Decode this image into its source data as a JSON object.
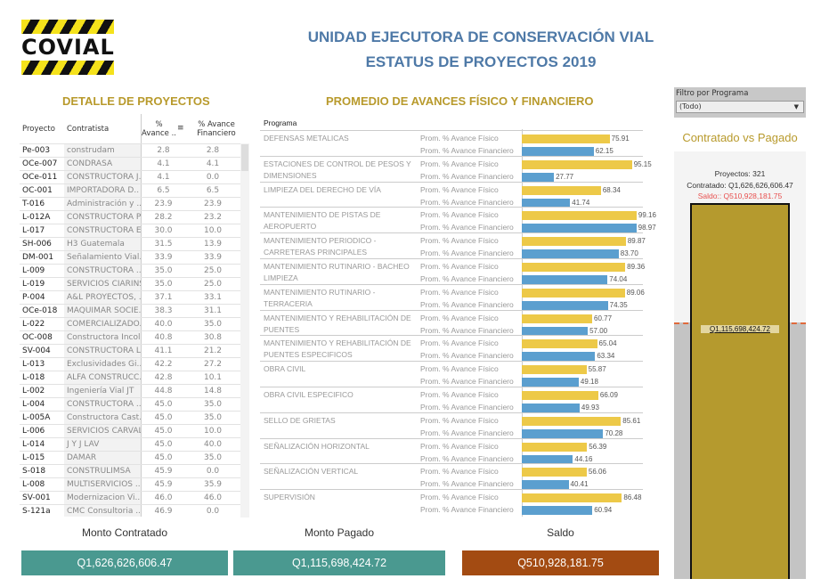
{
  "header": {
    "logo_text": "COVIAL",
    "title_line1": "UNIDAD EJECUTORA DE CONSERVACIÓN VIAL",
    "title_line2": "ESTATUS DE PROYECTOS 2019"
  },
  "detail": {
    "title": "DETALLE DE PROYECTOS",
    "columns": [
      "Proyecto",
      "Contratista",
      "% Avance ..",
      "% Avance Financiero"
    ],
    "rows": [
      [
        "Pe-003",
        "construdam",
        "2.8",
        "2.8"
      ],
      [
        "OCe-007",
        "CONDRASA",
        "4.1",
        "4.1"
      ],
      [
        "OCe-011",
        "CONSTRUCTORA J..",
        "4.1",
        "0.0"
      ],
      [
        "OC-001",
        "IMPORTADORA D..",
        "6.5",
        "6.5"
      ],
      [
        "T-016",
        "Administración y ..",
        "23.9",
        "23.9"
      ],
      [
        "L-012A",
        "CONSTRUCTORA P..",
        "28.2",
        "23.2"
      ],
      [
        "L-017",
        "CONSTRUCTORA E..",
        "30.0",
        "10.0"
      ],
      [
        "SH-006",
        "H3 Guatemala",
        "31.5",
        "13.9"
      ],
      [
        "DM-001",
        "Señalamiento Vial..",
        "33.9",
        "33.9"
      ],
      [
        "L-009",
        "CONSTRUCTORA ..",
        "35.0",
        "25.0"
      ],
      [
        "L-019",
        "SERVICIOS CIARINS",
        "35.0",
        "25.0"
      ],
      [
        "P-004",
        "A&L PROYECTOS, ..",
        "37.1",
        "33.1"
      ],
      [
        "OCe-018",
        "MAQUIMAR SOCIE..",
        "38.3",
        "31.1"
      ],
      [
        "L-022",
        "COMERCIALIZADO..",
        "40.0",
        "35.0"
      ],
      [
        "OC-008",
        "Constructora Incol",
        "40.8",
        "30.8"
      ],
      [
        "SV-004",
        "CONSTRUCTORA L..",
        "41.1",
        "21.2"
      ],
      [
        "L-013",
        "Exclusividades Gi..",
        "42.2",
        "27.2"
      ],
      [
        "L-018",
        "ALFA CONSTRUCC..",
        "42.8",
        "10.1"
      ],
      [
        "L-002",
        "Ingeniería Vial JT",
        "44.8",
        "14.8"
      ],
      [
        "L-004",
        "CONSTRUCTORA ..",
        "45.0",
        "35.0"
      ],
      [
        "L-005A",
        "Constructora Cast..",
        "45.0",
        "35.0"
      ],
      [
        "L-006",
        "SERVICIOS CARVAL",
        "45.0",
        "10.0"
      ],
      [
        "L-014",
        "J Y J LAV",
        "45.0",
        "40.0"
      ],
      [
        "L-015",
        "DAMAR",
        "45.0",
        "35.0"
      ],
      [
        "S-018",
        "CONSTRULIMSA",
        "45.9",
        "0.0"
      ],
      [
        "L-008",
        "MULTISERVICIOS ..",
        "45.9",
        "35.9"
      ],
      [
        "SV-001",
        "Modernizacion Vi..",
        "46.0",
        "46.0"
      ],
      [
        "S-121a",
        "CMC Consultoria ..",
        "46.9",
        "0.0"
      ]
    ]
  },
  "chart_data": {
    "type": "bar",
    "title": "PROMEDIO DE AVANCES FÍSICO Y FINANCIERO",
    "column_header": "Programa",
    "xlim": [
      0,
      100
    ],
    "measures": [
      "Prom. % Avance Físico",
      "Prom. % Avance Financiero"
    ],
    "colors": [
      "#edc948",
      "#5b9fcf"
    ],
    "categories": [
      "DEFENSAS METALICAS",
      "ESTACIONES DE CONTROL DE PESOS Y DIMENSIONES",
      "LIMPIEZA DEL DERECHO DE VÍA",
      "MANTENIMIENTO DE PISTAS DE AEROPUERTO",
      "MANTENIMIENTO PERIODICO - CARRETERAS PRINCIPALES",
      "MANTENIMIENTO RUTINARIO - BACHEO LIMPIEZA",
      "MANTENIMIENTO RUTINARIO - TERRACERIA",
      "MANTENIMIENTO Y REHABILITACIÓN DE PUENTES",
      "MANTENIMIENTO Y REHABILITACIÓN DE PUENTES ESPECIFICOS",
      "OBRA CIVIL",
      "OBRA CIVIL ESPECIFICO",
      "SELLO DE GRIETAS",
      "SEÑALIZACIÓN HORIZONTAL",
      "SEÑALIZACIÓN VERTICAL",
      "SUPERVISIÓN"
    ],
    "series": [
      {
        "name": "Prom. % Avance Físico",
        "values": [
          75.91,
          95.15,
          68.34,
          99.16,
          89.87,
          89.36,
          89.06,
          60.77,
          65.04,
          55.87,
          66.09,
          85.61,
          56.39,
          56.06,
          86.48
        ]
      },
      {
        "name": "Prom. % Avance Financiero",
        "values": [
          62.15,
          27.77,
          41.74,
          98.97,
          83.7,
          74.04,
          74.35,
          57.0,
          63.34,
          49.18,
          49.93,
          70.28,
          44.16,
          40.41,
          60.94
        ]
      }
    ]
  },
  "filter": {
    "label": "Filtro por Programa",
    "value": "(Todo)"
  },
  "cvp": {
    "title": "Contratado vs Pagado",
    "proyectos": "Proyectos: 321",
    "contratado": "Contratado: Q1,626,626,606.47",
    "saldo": "Saldo:: Q510,928,181.75",
    "pagado_label": "Q1,115,698,424.72",
    "pagado_fraction": 0.686,
    "bar_color": "#b59a2e",
    "saldo_color": "#e8504f"
  },
  "totals": {
    "contratado_label": "Monto Contratado",
    "contratado": "Q1,626,626,606.47",
    "pagado_label": "Monto Pagado",
    "pagado": "Q1,115,698,424.72",
    "saldo_label": "Saldo",
    "saldo": "Q510,928,181.75",
    "teal": "#4a9990",
    "brown": "#a34b12"
  }
}
